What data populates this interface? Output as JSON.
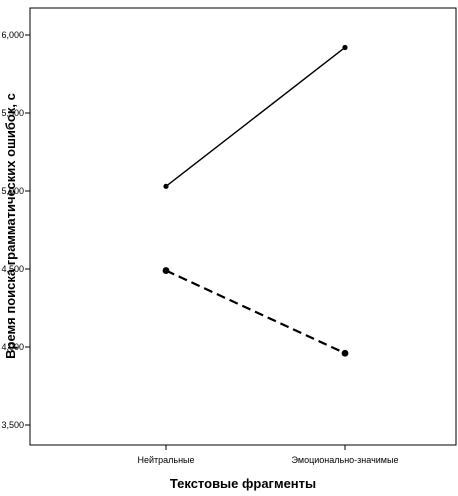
{
  "chart_data": {
    "type": "line",
    "title": "",
    "xlabel": "Текстовые фрагменты",
    "ylabel": "Время поиска грамматических ошибок, с",
    "categories": [
      "Нейтральные",
      "Эмоционально-значимые"
    ],
    "ylim": [
      3.4,
      6.1
    ],
    "yticks": [
      3.5,
      4.0,
      4.5,
      5.0,
      5.5,
      6.0
    ],
    "ytick_labels": [
      "3,500",
      "4,000",
      "4,500",
      "5,000",
      "5,500",
      "6,000"
    ],
    "grid": false,
    "legend": "none",
    "series": [
      {
        "values": [
          5.03,
          5.92
        ],
        "line_style": "solid",
        "color": "#000000"
      },
      {
        "values": [
          4.49,
          3.96
        ],
        "line_style": "dashed",
        "color": "#000000"
      }
    ]
  }
}
